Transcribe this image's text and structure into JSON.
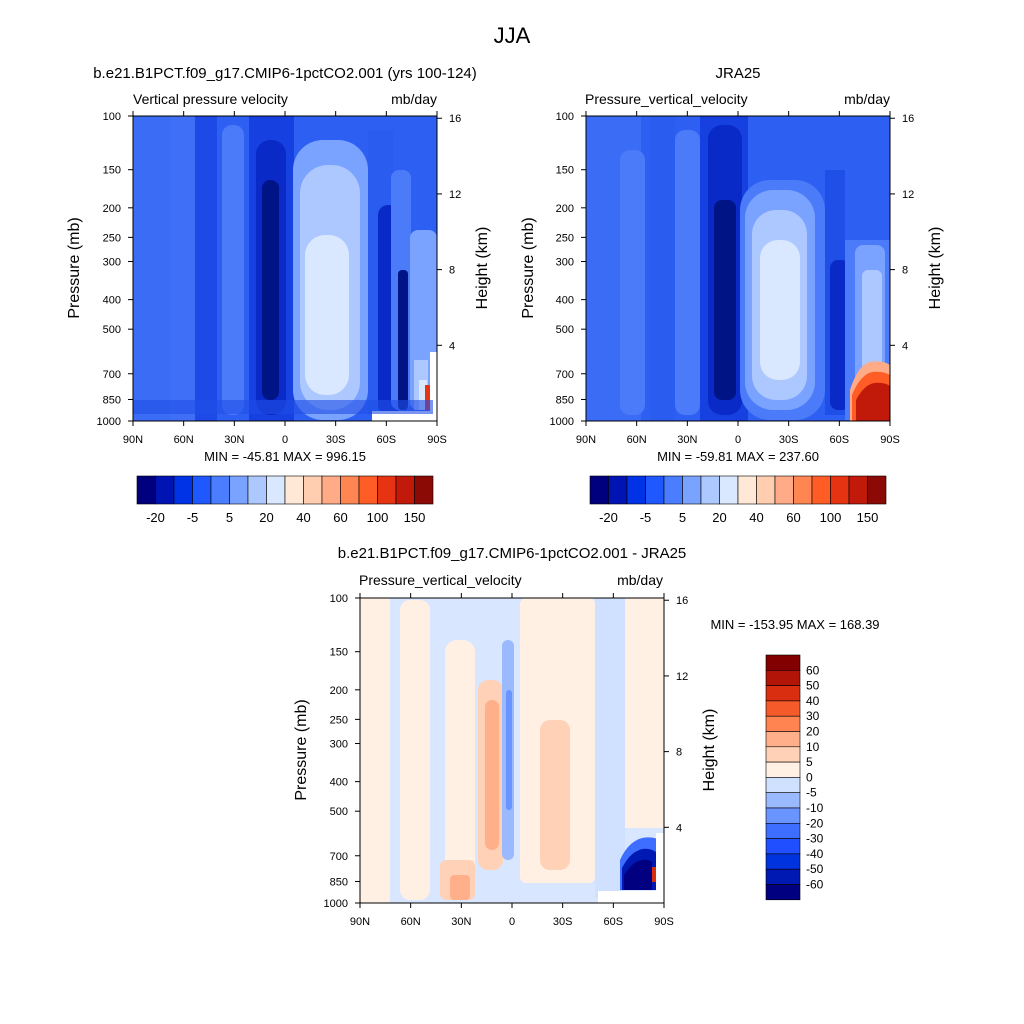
{
  "figure": {
    "title": "JJA"
  },
  "palettes": {
    "full": [
      "#00007f",
      "#0014b3",
      "#0033e6",
      "#1f58ff",
      "#4a7dff",
      "#7aa2ff",
      "#adc7ff",
      "#d9e7ff",
      "#ffe8d6",
      "#ffcdb0",
      "#ffab88",
      "#ff8552",
      "#ff5c26",
      "#e63312",
      "#c21a0a",
      "#8c0a05"
    ],
    "diff": [
      "#000080",
      "#0019b3",
      "#0033e0",
      "#1f4fff",
      "#3d6eff",
      "#6a94ff",
      "#9ab9ff",
      "#cfe1ff",
      "#fff0e3",
      "#ffd2b8",
      "#ffb08a",
      "#ff8452",
      "#f45a2a",
      "#d92e10",
      "#b21508",
      "#820000"
    ]
  },
  "chart_data": [
    {
      "id": "model",
      "type": "heatmap",
      "title": "b.e21.B1PCT.f09_g17.CMIP6-1pctCO2.001 (yrs 100-124)",
      "left_label": "Vertical pressure velocity",
      "right_label": "mb/day",
      "ylabel": "Pressure (mb)",
      "y2label": "Height (km)",
      "xticks": [
        "90N",
        "60N",
        "30N",
        "0",
        "30S",
        "60S",
        "90S"
      ],
      "x_values": [
        90,
        60,
        30,
        0,
        -30,
        -60,
        -90
      ],
      "yticks": [
        "100",
        "150",
        "200",
        "250",
        "300",
        "400",
        "500",
        "700",
        "850",
        "1000"
      ],
      "y_values": [
        100,
        150,
        200,
        250,
        300,
        400,
        500,
        700,
        850,
        1000
      ],
      "y2ticks": [
        "16",
        "12",
        "8",
        "4"
      ],
      "y2_values": [
        16,
        12,
        8,
        4
      ],
      "stats": "MIN = -45.81  MAX = 996.15",
      "colorbar_labels": [
        "-20",
        "-5",
        "5",
        "20",
        "40",
        "60",
        "100",
        "150"
      ],
      "min": -45.81,
      "max": 996.15
    },
    {
      "id": "obs",
      "type": "heatmap",
      "title": "JRA25",
      "left_label": "Pressure_vertical_velocity",
      "right_label": "mb/day",
      "ylabel": "Pressure (mb)",
      "y2label": "Height (km)",
      "xticks": [
        "90N",
        "60N",
        "30N",
        "0",
        "30S",
        "60S",
        "90S"
      ],
      "x_values": [
        90,
        60,
        30,
        0,
        -30,
        -60,
        -90
      ],
      "yticks": [
        "100",
        "150",
        "200",
        "250",
        "300",
        "400",
        "500",
        "700",
        "850",
        "1000"
      ],
      "y_values": [
        100,
        150,
        200,
        250,
        300,
        400,
        500,
        700,
        850,
        1000
      ],
      "y2ticks": [
        "16",
        "12",
        "8",
        "4"
      ],
      "y2_values": [
        16,
        12,
        8,
        4
      ],
      "stats": "MIN = -59.81  MAX = 237.60",
      "colorbar_labels": [
        "-20",
        "-5",
        "5",
        "20",
        "40",
        "60",
        "100",
        "150"
      ],
      "min": -59.81,
      "max": 237.6
    },
    {
      "id": "diff",
      "type": "heatmap",
      "title": "b.e21.B1PCT.f09_g17.CMIP6-1pctCO2.001 - JRA25",
      "left_label": "Pressure_vertical_velocity",
      "right_label": "mb/day",
      "ylabel": "Pressure (mb)",
      "y2label": "Height (km)",
      "xticks": [
        "90N",
        "60N",
        "30N",
        "0",
        "30S",
        "60S",
        "90S"
      ],
      "x_values": [
        90,
        60,
        30,
        0,
        -30,
        -60,
        -90
      ],
      "yticks": [
        "100",
        "150",
        "200",
        "250",
        "300",
        "400",
        "500",
        "700",
        "850",
        "1000"
      ],
      "y_values": [
        100,
        150,
        200,
        250,
        300,
        400,
        500,
        700,
        850,
        1000
      ],
      "y2ticks": [
        "16",
        "12",
        "8",
        "4"
      ],
      "y2_values": [
        16,
        12,
        8,
        4
      ],
      "stats": "MIN = -153.95  MAX = 168.39",
      "colorbar_labels": [
        "60",
        "50",
        "40",
        "30",
        "20",
        "10",
        "5",
        "0",
        "-5",
        "-10",
        "-20",
        "-30",
        "-40",
        "-50",
        "-60"
      ],
      "min": -153.95,
      "max": 168.39
    }
  ]
}
